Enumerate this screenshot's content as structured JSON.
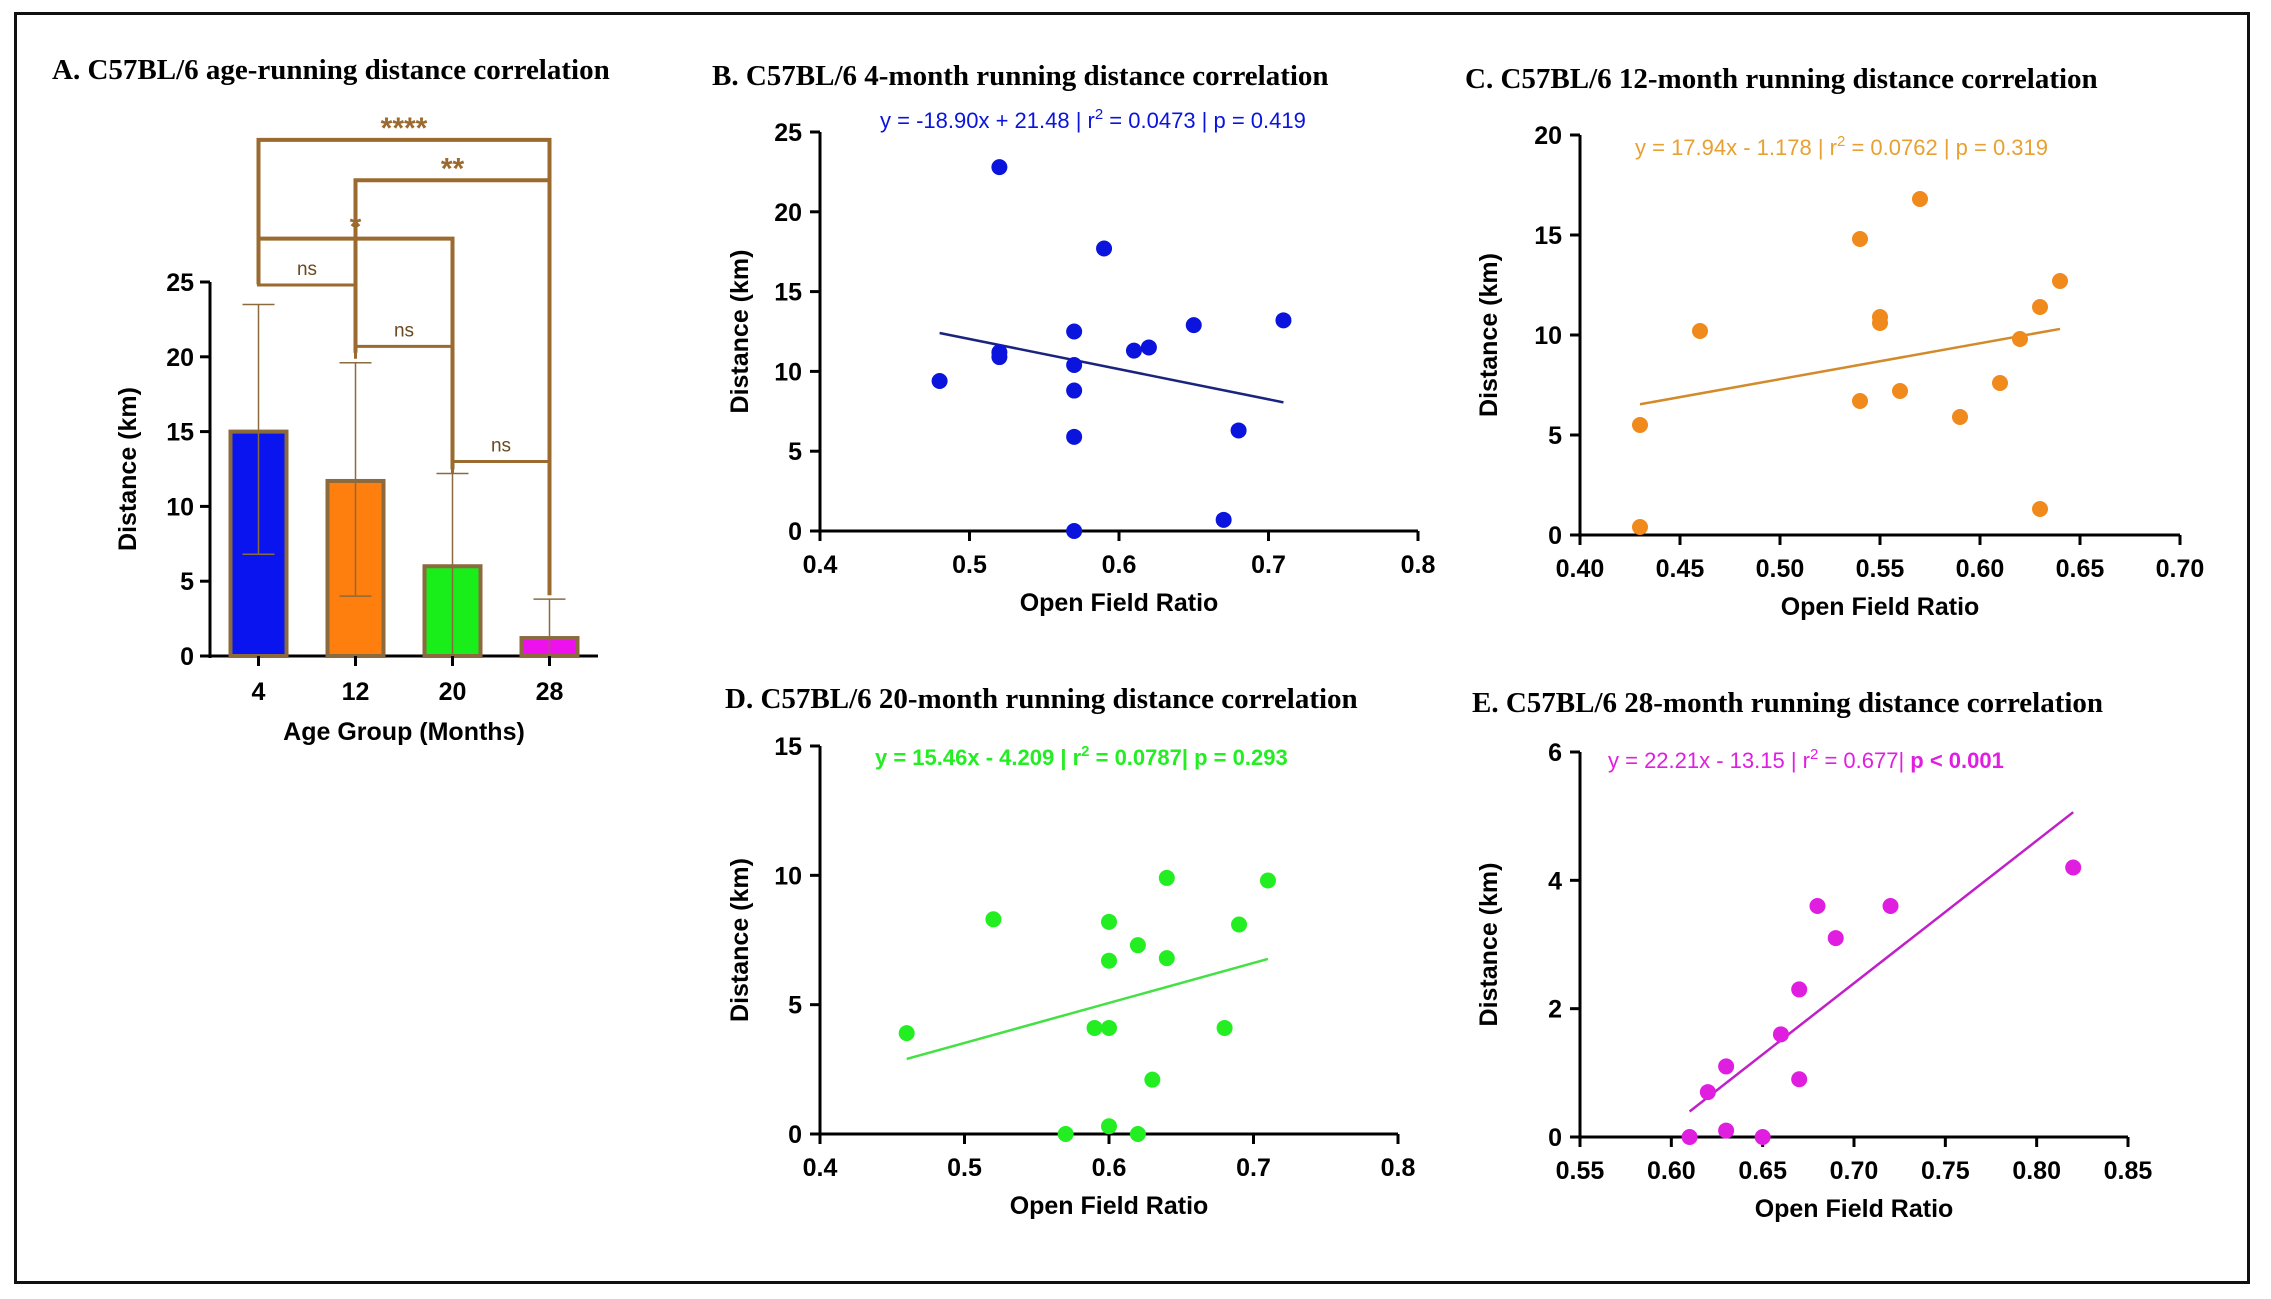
{
  "chart_data": [
    {
      "id": "A",
      "type": "bar",
      "title": "A. C57BL/6 age-running distance correlation",
      "xlabel": "Age Group (Months)",
      "ylabel": "Distance (km)",
      "categories": [
        "4",
        "12",
        "20",
        "28"
      ],
      "values": [
        15.0,
        11.7,
        6.0,
        1.2
      ],
      "error_low": [
        6.8,
        4.0,
        0.0,
        0.0
      ],
      "error_high": [
        23.5,
        19.6,
        12.2,
        3.8
      ],
      "bar_colors": [
        "#0a14ee",
        "#ff7f0e",
        "#1aee1a",
        "#ee11ee"
      ],
      "ylim": [
        0,
        25
      ],
      "yticks": [
        0,
        5,
        10,
        15,
        20,
        25
      ],
      "comparisons": [
        {
          "from": 0,
          "to": 3,
          "label": "****",
          "y": 34.5
        },
        {
          "from": 1,
          "to": 3,
          "label": "**",
          "y": 31.8
        },
        {
          "from": 0,
          "to": 2,
          "label": "*",
          "y": 27.9
        },
        {
          "from": 0,
          "to": 1,
          "label": "ns",
          "y": 24.8
        },
        {
          "from": 1,
          "to": 2,
          "label": "ns",
          "y": 20.7
        },
        {
          "from": 2,
          "to": 3,
          "label": "ns",
          "y": 13.0
        }
      ],
      "grid": false
    },
    {
      "id": "B",
      "type": "scatter",
      "title": "B. C57BL/6 4-month running distance correlation",
      "xlabel": "Open Field Ratio",
      "ylabel": "Distance (km)",
      "color": "#0a14dd",
      "line_color": "#1a237e",
      "xlim": [
        0.4,
        0.8
      ],
      "ylim": [
        0,
        25
      ],
      "xticks": [
        "0.4",
        "0.5",
        "0.6",
        "0.7",
        "0.8"
      ],
      "yticks": [
        "0",
        "5",
        "10",
        "15",
        "20",
        "25"
      ],
      "points": [
        [
          0.48,
          9.4
        ],
        [
          0.52,
          22.8
        ],
        [
          0.52,
          11.2
        ],
        [
          0.52,
          10.9
        ],
        [
          0.57,
          12.5
        ],
        [
          0.57,
          10.4
        ],
        [
          0.57,
          8.8
        ],
        [
          0.57,
          5.9
        ],
        [
          0.57,
          0.0
        ],
        [
          0.59,
          17.7
        ],
        [
          0.61,
          11.3
        ],
        [
          0.62,
          11.5
        ],
        [
          0.65,
          12.9
        ],
        [
          0.67,
          0.7
        ],
        [
          0.68,
          6.3
        ],
        [
          0.71,
          13.2
        ]
      ],
      "fit": {
        "slope": -18.9,
        "intercept": 21.48,
        "x_range": [
          0.48,
          0.71
        ]
      },
      "annotation": {
        "lead": "y = -18.90x + 21.48 | r",
        "sup": "2",
        "rest": " = 0.0473 | p = 0.419",
        "bold": ""
      },
      "grid": false
    },
    {
      "id": "C",
      "type": "scatter",
      "title": "C. C57BL/6 12-month running distance correlation",
      "xlabel": "Open Field Ratio",
      "ylabel": "Distance (km)",
      "color": "#f08a1c",
      "line_color": "#d28a2a",
      "eq_color": "#e8a033",
      "xlim": [
        0.4,
        0.7
      ],
      "ylim": [
        0,
        20
      ],
      "xticks": [
        "0.40",
        "0.45",
        "0.50",
        "0.55",
        "0.60",
        "0.65",
        "0.70"
      ],
      "yticks": [
        "0",
        "5",
        "10",
        "15",
        "20"
      ],
      "points": [
        [
          0.43,
          5.5
        ],
        [
          0.43,
          0.4
        ],
        [
          0.46,
          10.2
        ],
        [
          0.54,
          14.8
        ],
        [
          0.54,
          6.7
        ],
        [
          0.55,
          10.9
        ],
        [
          0.55,
          10.6
        ],
        [
          0.56,
          7.2
        ],
        [
          0.57,
          16.8
        ],
        [
          0.59,
          5.9
        ],
        [
          0.61,
          7.6
        ],
        [
          0.62,
          9.8
        ],
        [
          0.63,
          11.4
        ],
        [
          0.64,
          12.7
        ],
        [
          0.63,
          1.3
        ]
      ],
      "fit": {
        "slope": 17.94,
        "intercept": -1.178,
        "x_range": [
          0.43,
          0.64
        ]
      },
      "annotation": {
        "lead": "y = 17.94x - 1.178 | r",
        "sup": "2",
        "rest": " = 0.0762 | p = 0.319",
        "bold": ""
      },
      "grid": false
    },
    {
      "id": "D",
      "type": "scatter",
      "title": "D. C57BL/6 20-month running distance correlation",
      "xlabel": "Open Field Ratio",
      "ylabel": "Distance (km)",
      "color": "#22ee22",
      "line_color": "#44e044",
      "xlim": [
        0.4,
        0.8
      ],
      "ylim": [
        0,
        15
      ],
      "xticks": [
        "0.4",
        "0.5",
        "0.6",
        "0.7",
        "0.8"
      ],
      "yticks": [
        "0",
        "5",
        "10",
        "15"
      ],
      "points": [
        [
          0.46,
          3.9
        ],
        [
          0.52,
          8.3
        ],
        [
          0.57,
          0.0
        ],
        [
          0.59,
          4.1
        ],
        [
          0.6,
          4.1
        ],
        [
          0.6,
          8.2
        ],
        [
          0.6,
          6.7
        ],
        [
          0.6,
          0.3
        ],
        [
          0.62,
          7.3
        ],
        [
          0.62,
          0.0
        ],
        [
          0.63,
          2.1
        ],
        [
          0.64,
          9.9
        ],
        [
          0.64,
          6.8
        ],
        [
          0.68,
          4.1
        ],
        [
          0.69,
          8.1
        ],
        [
          0.71,
          9.8
        ]
      ],
      "fit": {
        "slope": 15.46,
        "intercept": -4.209,
        "x_range": [
          0.46,
          0.71
        ]
      },
      "annotation": {
        "lead": "y = 15.46x - 4.209 | r",
        "sup": "2",
        "rest": " = 0.0787| p = 0.293",
        "bold": ""
      },
      "annotation_all_bold": true,
      "grid": false
    },
    {
      "id": "E",
      "type": "scatter",
      "title": "E. C57BL/6 28-month running distance correlation",
      "xlabel": "Open Field Ratio",
      "ylabel": "Distance (km)",
      "color": "#e01ee0",
      "line_color": "#c020c8",
      "xlim": [
        0.55,
        0.85
      ],
      "ylim": [
        0,
        6
      ],
      "xticks": [
        "0.55",
        "0.60",
        "0.65",
        "0.70",
        "0.75",
        "0.80",
        "0.85"
      ],
      "yticks": [
        "0",
        "2",
        "4",
        "6"
      ],
      "points": [
        [
          0.61,
          0.0
        ],
        [
          0.62,
          0.7
        ],
        [
          0.63,
          1.1
        ],
        [
          0.63,
          0.1
        ],
        [
          0.65,
          0.0
        ],
        [
          0.66,
          1.6
        ],
        [
          0.67,
          2.3
        ],
        [
          0.67,
          0.9
        ],
        [
          0.68,
          3.6
        ],
        [
          0.69,
          3.1
        ],
        [
          0.72,
          3.6
        ],
        [
          0.82,
          4.2
        ]
      ],
      "fit": {
        "slope": 22.21,
        "intercept": -13.15,
        "x_range": [
          0.61,
          0.82
        ]
      },
      "annotation": {
        "lead": "y = 22.21x - 13.15 | r",
        "sup": "2",
        "rest": " = 0.677| ",
        "bold": "p < 0.001"
      },
      "grid": false
    }
  ]
}
